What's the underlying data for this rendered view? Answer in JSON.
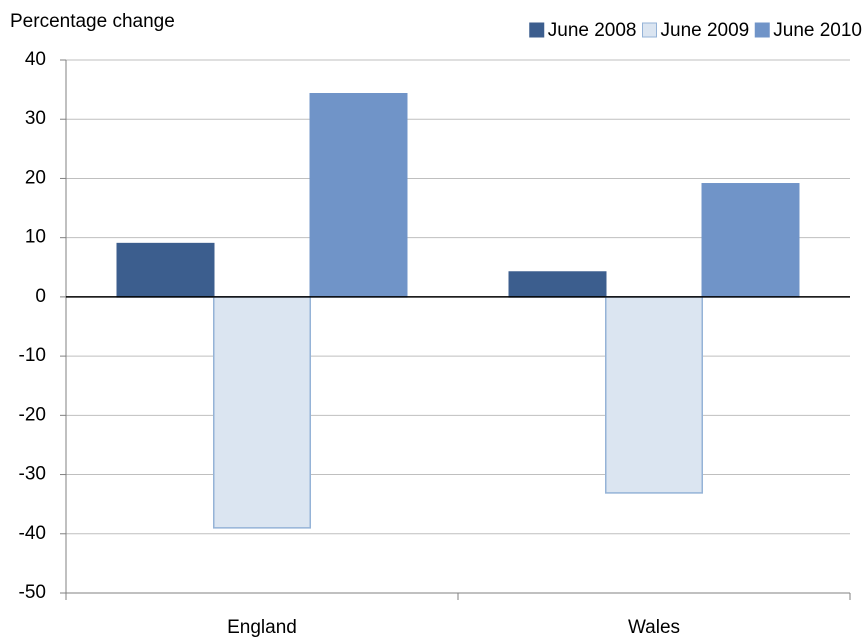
{
  "chart_data": {
    "type": "bar",
    "ylabel": "Percentage change",
    "categories": [
      "England",
      "Wales"
    ],
    "series": [
      {
        "name": "June 2008",
        "color": "#3c5e8e",
        "edgecolor": "#3c5e8e",
        "values": [
          9.0,
          4.2
        ]
      },
      {
        "name": "June 2009",
        "color": "#dbe5f1",
        "edgecolor": "#95b3d7",
        "values": [
          -39.0,
          -33.1
        ]
      },
      {
        "name": "June 2010",
        "color": "#7094c8",
        "edgecolor": "#7094c8",
        "values": [
          34.3,
          19.1
        ]
      }
    ],
    "ylim": [
      -50,
      40
    ],
    "yticks": [
      -50,
      -40,
      -30,
      -20,
      -10,
      0,
      10,
      20,
      30,
      40
    ],
    "grid": true,
    "legend": "top-right"
  }
}
